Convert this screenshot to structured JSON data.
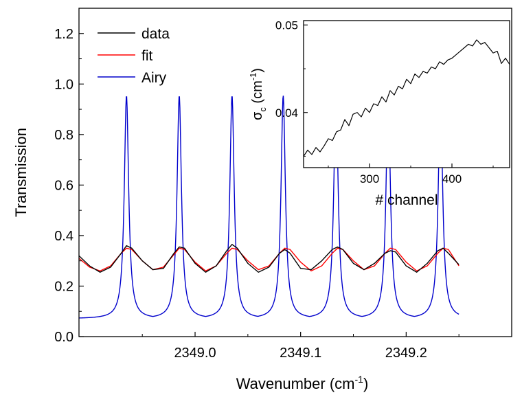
{
  "chart_data": [
    {
      "id": "main",
      "type": "line",
      "xlabel": {
        "main": "Wavenumber (cm",
        "sup": "-1",
        "tail": ")"
      },
      "ylabel": "Transmission",
      "xlim": [
        2348.89,
        2349.3
      ],
      "ylim": [
        0.0,
        1.3
      ],
      "xticks": [
        2349.0,
        2349.1,
        2349.2
      ],
      "xtick_labels": [
        "2349.0",
        "2349.1",
        "2349.2"
      ],
      "yticks": [
        0.0,
        0.2,
        0.4,
        0.6,
        0.8,
        1.0,
        1.2
      ],
      "ytick_labels": [
        "0.0",
        "0.2",
        "0.4",
        "0.6",
        "0.8",
        "1.0",
        "1.2"
      ],
      "grid": false,
      "legend": {
        "position": "top-left"
      },
      "series": [
        {
          "name": "data",
          "color": "#000000",
          "x": [
            2348.89,
            2348.9,
            2348.91,
            2348.92,
            2348.93,
            2348.935,
            2348.94,
            2348.95,
            2348.96,
            2348.97,
            2348.98,
            2348.985,
            2348.99,
            2349.0,
            2349.01,
            2349.02,
            2349.03,
            2349.035,
            2349.04,
            2349.05,
            2349.06,
            2349.07,
            2349.08,
            2349.085,
            2349.09,
            2349.1,
            2349.11,
            2349.12,
            2349.13,
            2349.135,
            2349.14,
            2349.15,
            2349.16,
            2349.17,
            2349.18,
            2349.185,
            2349.19,
            2349.2,
            2349.21,
            2349.22,
            2349.23,
            2349.235,
            2349.24,
            2349.25
          ],
          "y": [
            0.32,
            0.28,
            0.255,
            0.275,
            0.33,
            0.36,
            0.35,
            0.3,
            0.265,
            0.27,
            0.33,
            0.355,
            0.35,
            0.29,
            0.255,
            0.28,
            0.34,
            0.365,
            0.35,
            0.29,
            0.255,
            0.275,
            0.33,
            0.345,
            0.33,
            0.27,
            0.265,
            0.3,
            0.345,
            0.355,
            0.345,
            0.29,
            0.265,
            0.29,
            0.33,
            0.34,
            0.335,
            0.28,
            0.255,
            0.29,
            0.34,
            0.35,
            0.33,
            0.285
          ]
        },
        {
          "name": "fit",
          "color": "#ff0000",
          "x": [
            2348.89,
            2348.9,
            2348.91,
            2348.92,
            2348.93,
            2348.935,
            2348.94,
            2348.95,
            2348.96,
            2348.97,
            2348.98,
            2348.985,
            2348.99,
            2349.0,
            2349.01,
            2349.02,
            2349.03,
            2349.035,
            2349.04,
            2349.05,
            2349.06,
            2349.07,
            2349.08,
            2349.085,
            2349.09,
            2349.1,
            2349.11,
            2349.12,
            2349.13,
            2349.135,
            2349.14,
            2349.15,
            2349.16,
            2349.17,
            2349.18,
            2349.185,
            2349.19,
            2349.2,
            2349.21,
            2349.22,
            2349.23,
            2349.235,
            2349.24,
            2349.25
          ],
          "y": [
            0.31,
            0.275,
            0.26,
            0.28,
            0.33,
            0.35,
            0.345,
            0.3,
            0.265,
            0.275,
            0.325,
            0.35,
            0.345,
            0.295,
            0.26,
            0.28,
            0.33,
            0.35,
            0.345,
            0.3,
            0.265,
            0.28,
            0.33,
            0.35,
            0.345,
            0.295,
            0.26,
            0.28,
            0.33,
            0.35,
            0.345,
            0.3,
            0.265,
            0.28,
            0.33,
            0.35,
            0.345,
            0.295,
            0.26,
            0.28,
            0.33,
            0.35,
            0.345,
            0.28
          ]
        },
        {
          "name": "Airy",
          "color": "#0000cc",
          "function": "airy",
          "x_start": 2348.89,
          "x_end": 2349.25,
          "peak_centers": [
            2348.935,
            2348.985,
            2349.035,
            2349.0835,
            2349.1335,
            2349.183,
            2349.2325
          ],
          "peak_height": 0.955,
          "min_value": 0.071
        }
      ]
    },
    {
      "id": "inset",
      "type": "line",
      "xlabel": "# channel",
      "ylabel": {
        "main": "σ",
        "sub": "c",
        "unit_main": " (cm",
        "sup": "-1",
        "tail": ")"
      },
      "xlim": [
        220,
        470
      ],
      "ylim": [
        0.0337,
        0.0505
      ],
      "xticks": [
        300,
        400
      ],
      "xtick_labels": [
        "300",
        "400"
      ],
      "yticks": [
        0.04,
        0.05
      ],
      "ytick_labels": [
        "0.04",
        "0.05"
      ],
      "grid": false,
      "series": [
        {
          "color": "#000000",
          "x": [
            220,
            225,
            230,
            235,
            240,
            245,
            250,
            255,
            260,
            265,
            270,
            275,
            280,
            285,
            290,
            295,
            300,
            305,
            310,
            315,
            320,
            325,
            330,
            335,
            340,
            345,
            350,
            355,
            360,
            365,
            370,
            375,
            380,
            385,
            390,
            395,
            400,
            405,
            410,
            415,
            420,
            425,
            430,
            435,
            440,
            445,
            450,
            455,
            460,
            465,
            470
          ],
          "y": [
            0.035,
            0.0357,
            0.0352,
            0.036,
            0.0355,
            0.0362,
            0.037,
            0.0368,
            0.0378,
            0.038,
            0.0392,
            0.0385,
            0.0398,
            0.04,
            0.0395,
            0.0405,
            0.04,
            0.041,
            0.0408,
            0.0418,
            0.0412,
            0.0425,
            0.042,
            0.043,
            0.0427,
            0.0438,
            0.0433,
            0.0444,
            0.044,
            0.0447,
            0.0445,
            0.0452,
            0.045,
            0.0458,
            0.0455,
            0.046,
            0.0462,
            0.0466,
            0.047,
            0.0474,
            0.0478,
            0.0476,
            0.0483,
            0.0478,
            0.048,
            0.0474,
            0.0468,
            0.047,
            0.0456,
            0.0462,
            0.0455
          ]
        }
      ]
    }
  ]
}
